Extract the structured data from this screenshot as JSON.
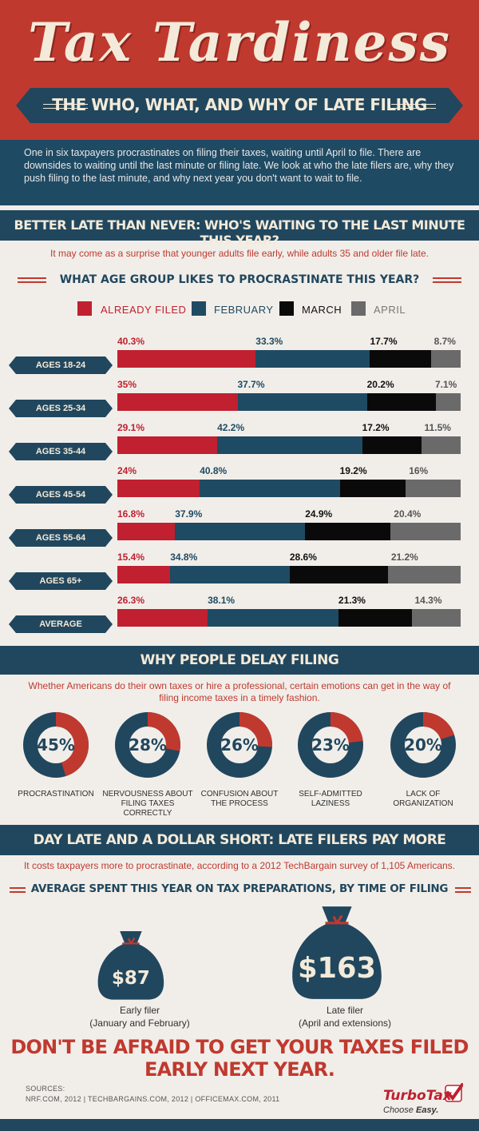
{
  "header": {
    "title": "Tax Tardiness",
    "subtitle": "THE WHO, WHAT, AND WHY OF LATE FILING",
    "intro": "One in six taxpayers procrastinates on filing their taxes, waiting until April to file. There are downsides to waiting until the last minute or filing late. We look at who the late filers are, why they push filing to the last minute, and why next year you don't want to wait to file."
  },
  "section1": {
    "heading": "BETTER LATE THAN NEVER: WHO'S WAITING TO THE LAST MINUTE THIS YEAR?",
    "note": "It may come as a surprise that younger adults file early, while adults 35 and older file late.",
    "chart_heading": "WHAT AGE GROUP LIKES TO PROCRASTINATE THIS YEAR?"
  },
  "colors": {
    "already_filed": "#c0202f",
    "february": "#1f4a63",
    "march": "#0a0a0a",
    "april": "#6a6a6a",
    "accent_red": "#c0392f",
    "navy": "#21475e"
  },
  "chart_data": [
    {
      "type": "bar",
      "orientation": "horizontal-stacked",
      "title": "WHAT AGE GROUP LIKES TO PROCRASTINATE THIS YEAR?",
      "categories": [
        "AGES 18-24",
        "AGES 25-34",
        "AGES 35-44",
        "AGES 45-54",
        "AGES 55-64",
        "AGES 65+",
        "AVERAGE"
      ],
      "series": [
        {
          "name": "ALREADY FILED",
          "values": [
            40.3,
            35,
            29.1,
            24,
            16.8,
            15.4,
            26.3
          ],
          "labels": [
            "40.3%",
            "35%",
            "29.1%",
            "24%",
            "16.8%",
            "15.4%",
            "26.3%"
          ]
        },
        {
          "name": "FEBRUARY",
          "values": [
            33.3,
            37.7,
            42.2,
            40.8,
            37.9,
            34.8,
            38.1
          ],
          "labels": [
            "33.3%",
            "37.7%",
            "42.2%",
            "40.8%",
            "37.9%",
            "34.8%",
            "38.1%"
          ]
        },
        {
          "name": "MARCH",
          "values": [
            17.7,
            20.2,
            17.2,
            19.2,
            24.9,
            28.6,
            21.3
          ],
          "labels": [
            "17.7%",
            "20.2%",
            "17.2%",
            "19.2%",
            "24.9%",
            "28.6%",
            "21.3%"
          ]
        },
        {
          "name": "APRIL",
          "values": [
            8.7,
            7.1,
            11.5,
            16,
            20.4,
            21.2,
            14.3
          ],
          "labels": [
            "8.7%",
            "7.1%",
            "11.5%",
            "16%",
            "20.4%",
            "21.2%",
            "14.3%"
          ]
        }
      ],
      "legend_position": "top"
    },
    {
      "type": "pie",
      "variant": "donut",
      "title": "WHY PEOPLE DELAY FILING",
      "categories": [
        "PROCRASTINATION",
        "NERVOUSNESS ABOUT FILING TAXES CORRECTLY",
        "CONFUSION ABOUT THE PROCESS",
        "SELF-ADMITTED LAZINESS",
        "LACK OF ORGANIZATION"
      ],
      "values": [
        45,
        28,
        26,
        23,
        20
      ],
      "labels": [
        "45%",
        "28%",
        "26%",
        "23%",
        "20%"
      ],
      "label_lines": [
        [
          "PROCRASTINATION"
        ],
        [
          "NERVOUSNESS ABOUT",
          "FILING TAXES CORRECTLY"
        ],
        [
          "CONFUSION ABOUT",
          "THE PROCESS"
        ],
        [
          "SELF-ADMITTED",
          "LAZINESS"
        ],
        [
          "LACK OF",
          "ORGANIZATION"
        ]
      ]
    },
    {
      "type": "bar",
      "variant": "pictograph",
      "title": "AVERAGE SPENT THIS YEAR ON TAX PREPARATIONS, BY TIME OF FILING",
      "categories": [
        "Early filer (January and February)",
        "Late filer (April and extensions)"
      ],
      "values": [
        87,
        163
      ],
      "labels": [
        "$87",
        "$163"
      ],
      "unit": "USD"
    }
  ],
  "section2": {
    "heading": "WHY PEOPLE DELAY FILING",
    "note_line1": "Whether Americans do their own taxes or hire a professional, certain emotions can get in the way of",
    "note_line2": "filing income taxes in a timely fashion."
  },
  "section3": {
    "heading": "DAY LATE AND A DOLLAR SHORT: LATE FILERS PAY MORE",
    "note": "It costs taxpayers more to procrastinate, according to a 2012 TechBargain survey of 1,105 Americans.",
    "chart_heading": "AVERAGE SPENT THIS YEAR ON TAX PREPARATIONS, BY TIME OF FILING",
    "early_line1": "Early filer",
    "early_line2": "(January and February)",
    "late_line1": "Late filer",
    "late_line2": "(April and extensions)"
  },
  "cta": "DON'T BE AFRAID TO GET YOUR TAXES FILED EARLY NEXT YEAR.",
  "sources": {
    "label": "SOURCES:",
    "list": "NRF.COM, 2012  |  TECHBARGAINS.COM, 2012  |  OFFICEMAX.COM, 2011"
  },
  "logo": {
    "name": "TurboTax",
    "tagline": "Choose",
    "tagline_emphasis": "Easy."
  }
}
